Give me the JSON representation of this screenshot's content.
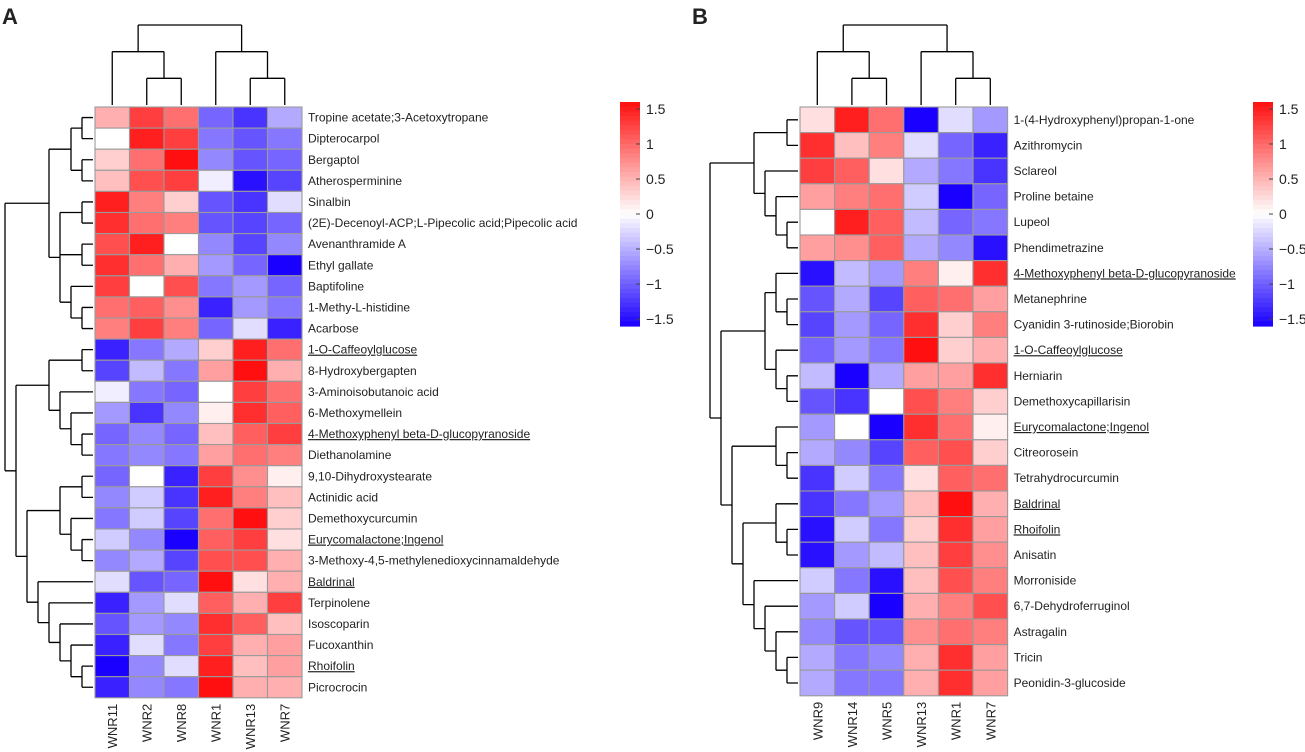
{
  "colors": {
    "low": "#1a00ff",
    "mid": "#ffffff",
    "high": "#ff0f0f",
    "cell_border": "#9a9a9a",
    "tree": "#000000"
  },
  "chart_data": [
    {
      "type": "heatmap",
      "panel": "A",
      "columns": [
        "WNR11",
        "WNR2",
        "WNR8",
        "WNR1",
        "WNR13",
        "WNR7"
      ],
      "rows": [
        "Tropine acetate;3-Acetoxytropane",
        "Dipterocarpol",
        "Bergaptol",
        "Atherosperminine",
        "Sinalbin",
        "(2E)-Decenoyl-ACP;L-Pipecolic acid;Pipecolic acid",
        "Avenanthramide A",
        "Ethyl gallate",
        "Baptifoline",
        "1-Methy-L-histidine",
        "Acarbose",
        "1-O-Caffeoylglucose",
        "8-Hydroxybergapten",
        "3-Aminoisobutanoic acid",
        "6-Methoxymellein",
        "4-Methoxyphenyl beta-D-glucopyranoside",
        "Diethanolamine",
        "9,10-Dihydroxystearate",
        "Actinidic acid",
        "Demethoxycurcumin",
        "Eurycomalactone;Ingenol",
        "3-Methoxy-4,5-methylenedioxycinnamaldehyde",
        "Baldrinal",
        "Terpinolene",
        "Isoscoparin",
        "Fucoxanthin",
        "Rhoifolin",
        "Picrocrocin"
      ],
      "underlined_rows": [
        "1-O-Caffeoylglucose",
        "4-Methoxyphenyl beta-D-glucopyranoside",
        "Eurycomalactone;Ingenol",
        "Baldrinal",
        "Rhoifolin"
      ],
      "values": [
        [
          0.5,
          1.2,
          0.9,
          -0.9,
          -1.2,
          -0.5
        ],
        [
          0.0,
          1.4,
          1.2,
          -0.8,
          -1.0,
          -0.8
        ],
        [
          0.3,
          0.9,
          1.5,
          -0.7,
          -1.0,
          -0.9
        ],
        [
          0.4,
          1.1,
          1.2,
          -0.1,
          -1.4,
          -1.1
        ],
        [
          1.4,
          0.8,
          0.3,
          -1.0,
          -1.2,
          -0.2
        ],
        [
          1.3,
          0.9,
          0.8,
          -1.0,
          -1.1,
          -0.9
        ],
        [
          1.1,
          1.4,
          0.0,
          -0.7,
          -1.1,
          -0.7
        ],
        [
          1.3,
          0.9,
          0.5,
          -0.6,
          -0.9,
          -1.5
        ],
        [
          1.2,
          0.0,
          1.1,
          -0.8,
          -0.6,
          -0.9
        ],
        [
          0.9,
          1.0,
          0.7,
          -1.3,
          -0.6,
          -0.8
        ],
        [
          0.8,
          1.2,
          0.8,
          -0.9,
          -0.2,
          -1.3
        ],
        [
          -1.3,
          -0.8,
          -0.5,
          0.3,
          1.4,
          0.9
        ],
        [
          -1.1,
          -0.4,
          -0.8,
          0.6,
          1.5,
          0.5
        ],
        [
          -0.1,
          -0.8,
          -0.9,
          0.0,
          1.2,
          0.9
        ],
        [
          -0.6,
          -1.2,
          -0.7,
          0.1,
          1.3,
          1.0
        ],
        [
          -0.9,
          -0.7,
          -0.9,
          0.4,
          1.0,
          1.2
        ],
        [
          -0.8,
          -0.7,
          -0.8,
          0.6,
          0.9,
          0.8
        ],
        [
          -0.9,
          0.0,
          -1.3,
          1.2,
          0.7,
          0.1
        ],
        [
          -0.7,
          -0.3,
          -1.2,
          1.4,
          0.8,
          0.4
        ],
        [
          -0.8,
          -0.3,
          -1.1,
          0.9,
          1.5,
          0.3
        ],
        [
          -0.3,
          -0.7,
          -1.5,
          1.0,
          1.2,
          0.2
        ],
        [
          -0.7,
          -0.5,
          -1.1,
          1.1,
          1.1,
          0.5
        ],
        [
          -0.2,
          -1.0,
          -0.9,
          1.5,
          0.2,
          0.5
        ],
        [
          -1.3,
          -0.6,
          -0.2,
          1.0,
          0.5,
          1.2
        ],
        [
          -1.0,
          -0.6,
          -0.7,
          1.3,
          1.0,
          0.4
        ],
        [
          -1.3,
          -0.2,
          -0.8,
          1.2,
          0.5,
          0.6
        ],
        [
          -1.5,
          -0.7,
          -0.2,
          1.4,
          0.4,
          0.6
        ],
        [
          -1.3,
          -0.7,
          -0.8,
          1.6,
          0.5,
          0.5
        ]
      ],
      "legend": {
        "ticks": [
          1.5,
          1,
          0.5,
          0,
          -0.5,
          -1,
          -1.5
        ],
        "tick_labels": [
          "1.5",
          "1",
          "0.5",
          "0",
          "−0.5",
          "−1",
          "−1.5"
        ]
      }
    },
    {
      "type": "heatmap",
      "panel": "B",
      "columns": [
        "WNR9",
        "WNR14",
        "WNR5",
        "WNR13",
        "WNR1",
        "WNR7"
      ],
      "rows": [
        "1-(4-Hydroxyphenyl)propan-1-one",
        "Azithromycin",
        "Sclareol",
        "Proline betaine",
        "Lupeol",
        "Phendimetrazine",
        "4-Methoxyphenyl beta-D-glucopyranoside",
        "Metanephrine",
        "Cyanidin 3-rutinoside;Biorobin",
        "1-O-Caffeoylglucose",
        "Herniarin",
        "Demethoxycapillarisin",
        "Eurycomalactone;Ingenol",
        "Citreorosein",
        "Tetrahydrocurcumin",
        "Baldrinal",
        "Rhoifolin",
        "Anisatin",
        "Morroniside",
        "6,7-Dehydroferruginol",
        "Astragalin",
        "Tricin",
        "Peonidin-3-glucoside"
      ],
      "underlined_rows": [
        "4-Methoxyphenyl beta-D-glucopyranoside",
        "1-O-Caffeoylglucose",
        "Eurycomalactone;Ingenol",
        "Baldrinal",
        "Rhoifolin"
      ],
      "values": [
        [
          0.2,
          1.4,
          0.9,
          -1.5,
          -0.2,
          -0.6
        ],
        [
          1.3,
          0.4,
          0.8,
          -0.2,
          -0.9,
          -1.3
        ],
        [
          1.2,
          1.0,
          0.2,
          -0.5,
          -0.8,
          -1.2
        ],
        [
          0.6,
          0.8,
          0.9,
          -0.3,
          -1.5,
          -0.9
        ],
        [
          0.0,
          1.4,
          1.0,
          -0.4,
          -0.9,
          -0.8
        ],
        [
          0.6,
          0.7,
          1.0,
          -0.5,
          -0.7,
          -1.4
        ],
        [
          -1.4,
          -0.4,
          -0.6,
          0.8,
          0.1,
          1.3
        ],
        [
          -1.0,
          -0.5,
          -1.1,
          1.0,
          0.9,
          0.6
        ],
        [
          -1.1,
          -0.6,
          -0.9,
          1.3,
          0.3,
          0.8
        ],
        [
          -0.9,
          -0.6,
          -0.8,
          1.5,
          0.3,
          0.5
        ],
        [
          -0.4,
          -1.5,
          -0.5,
          0.6,
          0.6,
          1.3
        ],
        [
          -1.0,
          -1.2,
          0.0,
          1.1,
          0.8,
          0.3
        ],
        [
          -0.6,
          0.0,
          -1.5,
          1.3,
          0.9,
          0.1
        ],
        [
          -0.5,
          -0.7,
          -1.1,
          1.0,
          1.1,
          0.3
        ],
        [
          -1.2,
          -0.3,
          -0.8,
          0.2,
          1.0,
          0.9
        ],
        [
          -1.2,
          -0.8,
          -0.6,
          0.4,
          1.5,
          0.5
        ],
        [
          -1.4,
          -0.3,
          -0.8,
          0.3,
          1.3,
          0.6
        ],
        [
          -1.4,
          -0.6,
          -0.4,
          0.4,
          1.2,
          0.7
        ],
        [
          -0.3,
          -0.8,
          -1.4,
          0.4,
          1.1,
          0.8
        ],
        [
          -0.6,
          -0.3,
          -1.5,
          0.5,
          0.8,
          1.1
        ],
        [
          -0.7,
          -1.0,
          -1.0,
          0.7,
          0.9,
          0.8
        ],
        [
          -0.5,
          -0.8,
          -0.7,
          0.5,
          1.3,
          0.6
        ],
        [
          -0.5,
          -0.8,
          -0.8,
          0.5,
          1.3,
          0.6
        ]
      ],
      "legend": {
        "ticks": [
          1.5,
          1,
          0.5,
          0,
          -0.5,
          -1,
          -1.5
        ],
        "tick_labels": [
          "1.5",
          "1",
          "0.5",
          "0",
          "−0.5",
          "−1",
          "−1.5"
        ]
      }
    }
  ]
}
